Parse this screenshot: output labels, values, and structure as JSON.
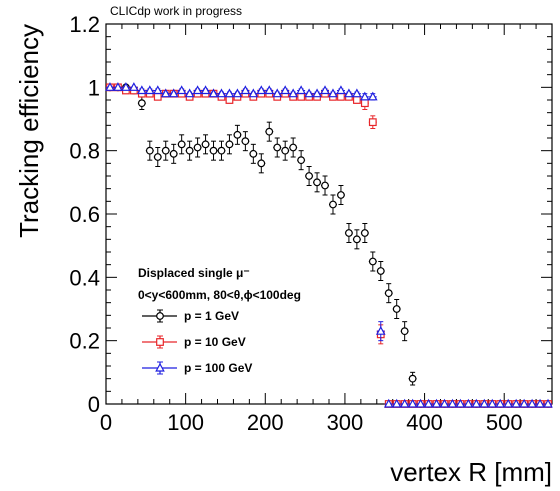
{
  "chart_data": {
    "type": "scatter",
    "title": "",
    "annotation": "CLICdp work in progress",
    "xlabel": "vertex R [mm]",
    "ylabel": "Tracking efficiency",
    "xlim": [
      0,
      560
    ],
    "ylim": [
      0,
      1.2
    ],
    "x_ticks": [
      0,
      100,
      200,
      300,
      400,
      500
    ],
    "x_tick_labels": [
      "0",
      "100",
      "200",
      "300",
      "400",
      "500"
    ],
    "y_ticks": [
      0,
      0.2,
      0.4,
      0.6,
      0.8,
      1.0,
      1.2
    ],
    "y_tick_labels": [
      "0",
      "0.2",
      "0.4",
      "0.6",
      "0.8",
      "1",
      "1.2"
    ],
    "grid": false,
    "legend": {
      "placement": "bottom-left",
      "header_lines": [
        "Displaced single μ⁻",
        "0<y<600mm, 80<θ,ϕ<100deg"
      ]
    },
    "series": [
      {
        "name": "p = 1 GeV",
        "color": "#000000",
        "marker": "circle",
        "x": [
          5,
          15,
          25,
          35,
          45,
          55,
          65,
          75,
          85,
          95,
          105,
          115,
          125,
          135,
          145,
          155,
          165,
          175,
          185,
          195,
          205,
          215,
          225,
          235,
          245,
          255,
          265,
          275,
          285,
          295,
          305,
          315,
          325,
          335,
          345,
          355,
          365,
          375,
          385,
          395,
          405,
          415,
          425,
          435,
          445,
          455,
          465,
          475,
          485,
          495,
          505,
          515,
          525,
          535,
          545,
          555
        ],
        "y": [
          1.0,
          1.0,
          1.0,
          0.99,
          0.95,
          0.8,
          0.78,
          0.8,
          0.79,
          0.82,
          0.8,
          0.81,
          0.82,
          0.8,
          0.8,
          0.82,
          0.85,
          0.83,
          0.79,
          0.76,
          0.86,
          0.81,
          0.8,
          0.81,
          0.77,
          0.72,
          0.7,
          0.69,
          0.63,
          0.66,
          0.54,
          0.52,
          0.54,
          0.45,
          0.42,
          0.35,
          0.3,
          0.23,
          0.08,
          0.0,
          0.0,
          0.0,
          0.0,
          0.0,
          0.0,
          0.0,
          0.0,
          0.0,
          0.0,
          0.0,
          0.0,
          0.0,
          0.0,
          0.0,
          0.0,
          0.0
        ],
        "err": [
          0.0,
          0.0,
          0.0,
          0.01,
          0.02,
          0.03,
          0.03,
          0.03,
          0.03,
          0.03,
          0.03,
          0.03,
          0.03,
          0.03,
          0.03,
          0.03,
          0.03,
          0.03,
          0.03,
          0.03,
          0.03,
          0.03,
          0.03,
          0.03,
          0.03,
          0.03,
          0.03,
          0.03,
          0.03,
          0.03,
          0.03,
          0.03,
          0.03,
          0.03,
          0.03,
          0.03,
          0.03,
          0.03,
          0.02,
          0.0,
          0.0,
          0.0,
          0.0,
          0.0,
          0.0,
          0.0,
          0.0,
          0.0,
          0.0,
          0.0,
          0.0,
          0.0,
          0.0,
          0.0,
          0.0,
          0.0
        ]
      },
      {
        "name": "p = 10 GeV",
        "color": "#e8262a",
        "marker": "square",
        "x": [
          5,
          15,
          25,
          35,
          45,
          55,
          65,
          75,
          85,
          95,
          105,
          115,
          125,
          135,
          145,
          155,
          165,
          175,
          185,
          195,
          205,
          215,
          225,
          235,
          245,
          255,
          265,
          275,
          285,
          295,
          305,
          315,
          325,
          335,
          345,
          355,
          365,
          375,
          385,
          395,
          405,
          415,
          425,
          435,
          445,
          455,
          465,
          475,
          485,
          495,
          505,
          515,
          525,
          535,
          545,
          555
        ],
        "y": [
          1.0,
          1.0,
          0.99,
          0.99,
          0.98,
          0.98,
          0.97,
          0.98,
          0.98,
          0.98,
          0.97,
          0.98,
          0.98,
          0.98,
          0.97,
          0.96,
          0.97,
          0.98,
          0.97,
          0.98,
          0.98,
          0.97,
          0.98,
          0.97,
          0.97,
          0.97,
          0.97,
          0.98,
          0.97,
          0.97,
          0.97,
          0.96,
          0.95,
          0.89,
          0.22,
          0.0,
          0.0,
          0.0,
          0.0,
          0.0,
          0.0,
          0.0,
          0.0,
          0.0,
          0.0,
          0.0,
          0.0,
          0.0,
          0.0,
          0.0,
          0.0,
          0.0,
          0.0,
          0.0,
          0.0,
          0.0
        ],
        "err": [
          0.0,
          0.0,
          0.0,
          0.0,
          0.01,
          0.01,
          0.01,
          0.01,
          0.01,
          0.01,
          0.01,
          0.01,
          0.01,
          0.01,
          0.01,
          0.01,
          0.01,
          0.01,
          0.01,
          0.01,
          0.01,
          0.01,
          0.01,
          0.01,
          0.01,
          0.01,
          0.01,
          0.01,
          0.01,
          0.01,
          0.01,
          0.01,
          0.02,
          0.02,
          0.03,
          0.0,
          0.0,
          0.0,
          0.0,
          0.0,
          0.0,
          0.0,
          0.0,
          0.0,
          0.0,
          0.0,
          0.0,
          0.0,
          0.0,
          0.0,
          0.0,
          0.0,
          0.0,
          0.0,
          0.0,
          0.0
        ]
      },
      {
        "name": "p = 100 GeV",
        "color": "#1f1fe0",
        "marker": "triangle",
        "x": [
          5,
          15,
          25,
          35,
          45,
          55,
          65,
          75,
          85,
          95,
          105,
          115,
          125,
          135,
          145,
          155,
          165,
          175,
          185,
          195,
          205,
          215,
          225,
          235,
          245,
          255,
          265,
          275,
          285,
          295,
          305,
          315,
          325,
          335,
          345,
          355,
          365,
          375,
          385,
          395,
          405,
          415,
          425,
          435,
          445,
          455,
          465,
          475,
          485,
          495,
          505,
          515,
          525,
          535,
          545,
          555
        ],
        "y": [
          1.0,
          1.0,
          1.0,
          1.0,
          0.99,
          0.99,
          0.99,
          0.98,
          0.98,
          0.99,
          0.98,
          0.99,
          0.99,
          0.98,
          0.98,
          0.98,
          0.98,
          0.99,
          0.98,
          0.99,
          0.99,
          0.98,
          0.99,
          0.98,
          0.99,
          0.98,
          0.98,
          0.99,
          0.98,
          0.99,
          0.98,
          0.98,
          0.97,
          0.97,
          0.23,
          0.0,
          0.0,
          0.0,
          0.0,
          0.0,
          0.0,
          0.0,
          0.0,
          0.0,
          0.0,
          0.0,
          0.0,
          0.0,
          0.0,
          0.0,
          0.0,
          0.0,
          0.0,
          0.0,
          0.0,
          0.0
        ],
        "err": [
          0.0,
          0.0,
          0.0,
          0.0,
          0.005,
          0.005,
          0.005,
          0.005,
          0.005,
          0.005,
          0.005,
          0.005,
          0.005,
          0.005,
          0.005,
          0.005,
          0.005,
          0.005,
          0.005,
          0.005,
          0.005,
          0.005,
          0.005,
          0.005,
          0.005,
          0.005,
          0.005,
          0.005,
          0.005,
          0.005,
          0.005,
          0.005,
          0.01,
          0.01,
          0.03,
          0.0,
          0.0,
          0.0,
          0.0,
          0.0,
          0.0,
          0.0,
          0.0,
          0.0,
          0.0,
          0.0,
          0.0,
          0.0,
          0.0,
          0.0,
          0.0,
          0.0,
          0.0,
          0.0,
          0.0,
          0.0
        ]
      }
    ]
  }
}
